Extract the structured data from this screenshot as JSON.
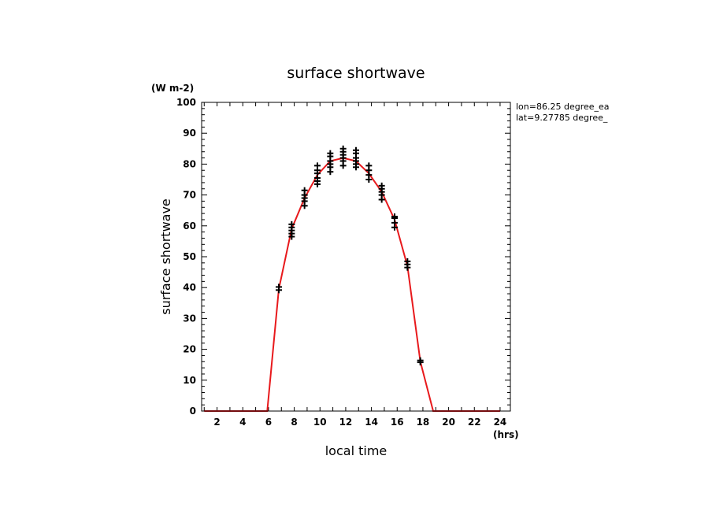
{
  "chart_data": {
    "type": "line",
    "title": "surface shortwave",
    "xlabel": "local time",
    "ylabel": "surface shortwave",
    "x_unit": "(hrs)",
    "y_unit": "(W m-2)",
    "annotations": [
      "lon=86.25 degree_ea",
      "lat=9.27785 degree_"
    ],
    "xlim": [
      0.8,
      24.8
    ],
    "ylim": [
      0,
      100
    ],
    "x_ticks": [
      2,
      4,
      6,
      8,
      10,
      12,
      14,
      16,
      18,
      20,
      22,
      24
    ],
    "y_ticks": [
      0,
      10,
      20,
      30,
      40,
      50,
      60,
      70,
      80,
      90,
      100
    ],
    "grid": false,
    "colors": {
      "line": "#e8191c",
      "markers": "#000000",
      "axes": "#000000"
    },
    "series": [
      {
        "kind": "line",
        "x": [
          1,
          2,
          3,
          4,
          5,
          5.9,
          6.8,
          7.8,
          8.8,
          9.8,
          10.8,
          11.8,
          12.8,
          13.8,
          14.8,
          15.8,
          16.8,
          17.8,
          18.8,
          19,
          20,
          21,
          22,
          23,
          24
        ],
        "y": [
          0,
          0,
          0,
          0,
          0,
          0,
          39.5,
          59,
          69,
          76.5,
          81,
          82,
          81,
          77,
          71,
          62,
          47,
          16,
          0,
          0,
          0,
          0,
          0,
          0,
          0
        ]
      },
      {
        "kind": "scatter",
        "marker": "+",
        "points": [
          [
            6.8,
            39.2
          ],
          [
            6.8,
            40.2
          ],
          [
            7.8,
            56.5
          ],
          [
            7.8,
            57.5
          ],
          [
            7.8,
            58.5
          ],
          [
            7.8,
            59.5
          ],
          [
            7.8,
            60.5
          ],
          [
            8.8,
            66.5
          ],
          [
            8.8,
            68
          ],
          [
            8.8,
            69
          ],
          [
            8.8,
            70
          ],
          [
            8.8,
            71.5
          ],
          [
            9.8,
            73.5
          ],
          [
            9.8,
            74.5
          ],
          [
            9.8,
            75.5
          ],
          [
            9.8,
            77
          ],
          [
            9.8,
            78
          ],
          [
            9.8,
            79.5
          ],
          [
            10.8,
            77.5
          ],
          [
            10.8,
            79
          ],
          [
            10.8,
            80
          ],
          [
            10.8,
            81
          ],
          [
            10.8,
            82.5
          ],
          [
            10.8,
            83.5
          ],
          [
            11.8,
            79.5
          ],
          [
            11.8,
            81
          ],
          [
            11.8,
            82
          ],
          [
            11.8,
            83
          ],
          [
            11.8,
            84
          ],
          [
            11.8,
            85
          ],
          [
            12.8,
            79
          ],
          [
            12.8,
            80
          ],
          [
            12.8,
            81
          ],
          [
            12.8,
            82
          ],
          [
            12.8,
            83.5
          ],
          [
            12.8,
            84.5
          ],
          [
            13.8,
            75
          ],
          [
            13.8,
            76.5
          ],
          [
            13.8,
            78
          ],
          [
            13.8,
            79.5
          ],
          [
            14.8,
            68.5
          ],
          [
            14.8,
            70
          ],
          [
            14.8,
            71
          ],
          [
            14.8,
            72
          ],
          [
            14.8,
            73
          ],
          [
            15.8,
            59.5
          ],
          [
            15.8,
            61
          ],
          [
            15.8,
            62.5
          ],
          [
            15.8,
            63
          ],
          [
            16.8,
            46.5
          ],
          [
            16.8,
            47.5
          ],
          [
            16.8,
            48.5
          ],
          [
            17.8,
            15.8
          ],
          [
            17.8,
            16.4
          ]
        ]
      }
    ]
  }
}
